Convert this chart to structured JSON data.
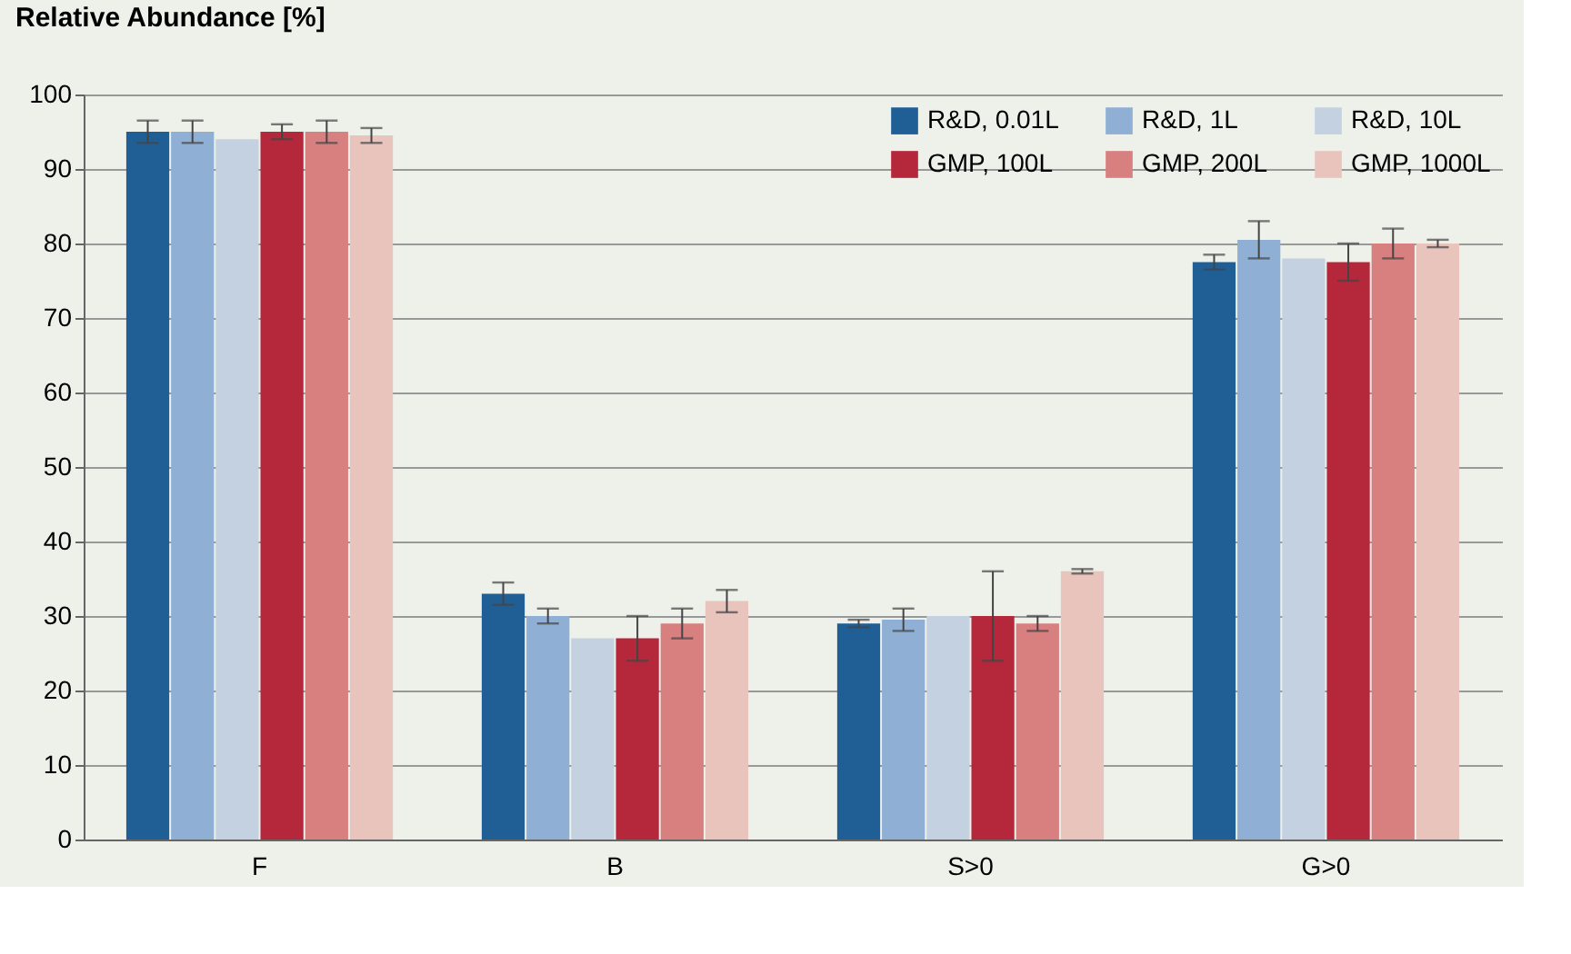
{
  "chart_data": {
    "type": "bar",
    "ylabel": "Relative Abundance [%]",
    "categories": [
      "F",
      "B",
      "S>0",
      "G>0"
    ],
    "series": [
      {
        "name": "R&D, 0.01L",
        "color": "#1f5f96",
        "values": [
          95,
          33,
          29,
          77.5
        ],
        "errors": [
          1.5,
          1.5,
          0.5,
          1
        ]
      },
      {
        "name": "R&D, 1L",
        "color": "#8fb0d4",
        "values": [
          95,
          30,
          29.5,
          80.5
        ],
        "errors": [
          1.5,
          1,
          1.5,
          2.5
        ]
      },
      {
        "name": "R&D, 10L",
        "color": "#c3d1e0",
        "values": [
          94,
          27,
          30,
          78
        ],
        "errors": [
          null,
          null,
          null,
          null
        ]
      },
      {
        "name": "GMP, 100L",
        "color": "#b5273a",
        "values": [
          95,
          27,
          30,
          77.5
        ],
        "errors": [
          1,
          3,
          6,
          2.5
        ]
      },
      {
        "name": "GMP, 200L",
        "color": "#d87f7f",
        "values": [
          95,
          29,
          29,
          80
        ],
        "errors": [
          1.5,
          2,
          1,
          2
        ]
      },
      {
        "name": "GMP, 1000L",
        "color": "#e8c4bd",
        "values": [
          94.5,
          32,
          36,
          80
        ],
        "errors": [
          1,
          1.5,
          0.3,
          0.5
        ]
      }
    ],
    "ylim": [
      0,
      100
    ],
    "yticks": [
      0,
      10,
      20,
      30,
      40,
      50,
      60,
      70,
      80,
      90,
      100
    ],
    "grid": "y",
    "legend": "top right"
  }
}
